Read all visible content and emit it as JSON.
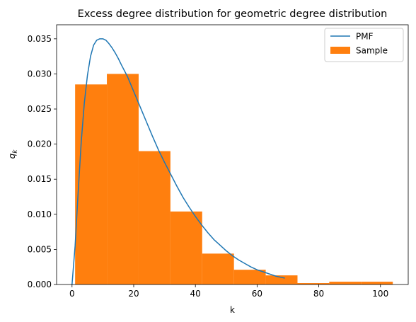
{
  "chart_data": {
    "type": "bar",
    "title": "Excess degree distribution for geometric degree distribution",
    "xlabel": "k",
    "ylabel": "q_k",
    "xlim": [
      -5,
      109
    ],
    "ylim": [
      0,
      0.037
    ],
    "grid": false,
    "legend_position": "top-right",
    "x_ticks": [
      0,
      20,
      40,
      60,
      80,
      100
    ],
    "x_tick_labels": [
      "0",
      "20",
      "40",
      "60",
      "80",
      "100"
    ],
    "y_ticks": [
      0,
      0.005,
      0.01,
      0.015,
      0.02,
      0.025,
      0.03,
      0.035
    ],
    "y_tick_labels": [
      "0.000",
      "0.005",
      "0.010",
      "0.015",
      "0.020",
      "0.025",
      "0.030",
      "0.035"
    ],
    "colors": {
      "pmf": "#1f77b4",
      "sample": "#ff7f0e"
    },
    "series": [
      {
        "name": "PMF",
        "kind": "line",
        "x": [
          0,
          1,
          2,
          3,
          4,
          5,
          6,
          7,
          8,
          9,
          10,
          11,
          12,
          13,
          14,
          15,
          16,
          18,
          20,
          22,
          24,
          26,
          28,
          30,
          32,
          34,
          36,
          38,
          40,
          42,
          44,
          46,
          48,
          50,
          52,
          54,
          56,
          58,
          60,
          62,
          64,
          66,
          68,
          69
        ],
        "y": [
          0.0,
          0.0055,
          0.0132,
          0.0204,
          0.0259,
          0.0298,
          0.0325,
          0.0341,
          0.0348,
          0.035,
          0.035,
          0.0348,
          0.0343,
          0.0337,
          0.033,
          0.0322,
          0.0313,
          0.0296,
          0.0275,
          0.0254,
          0.0233,
          0.0212,
          0.0192,
          0.0174,
          0.0157,
          0.014,
          0.0124,
          0.011,
          0.0097,
          0.0085,
          0.0074,
          0.0064,
          0.0056,
          0.0048,
          0.0041,
          0.0035,
          0.003,
          0.0025,
          0.0021,
          0.0018,
          0.0015,
          0.0012,
          0.001,
          0.0009
        ]
      },
      {
        "name": "Sample",
        "kind": "histogram",
        "bin_edges": [
          1,
          11.3,
          21.6,
          31.9,
          42.2,
          52.5,
          62.8,
          73.1,
          83.4,
          93.7,
          104
        ],
        "values": [
          0.0285,
          0.03,
          0.019,
          0.0104,
          0.0044,
          0.0021,
          0.0013,
          0.0002,
          0.0004,
          0.0004
        ]
      }
    ]
  }
}
